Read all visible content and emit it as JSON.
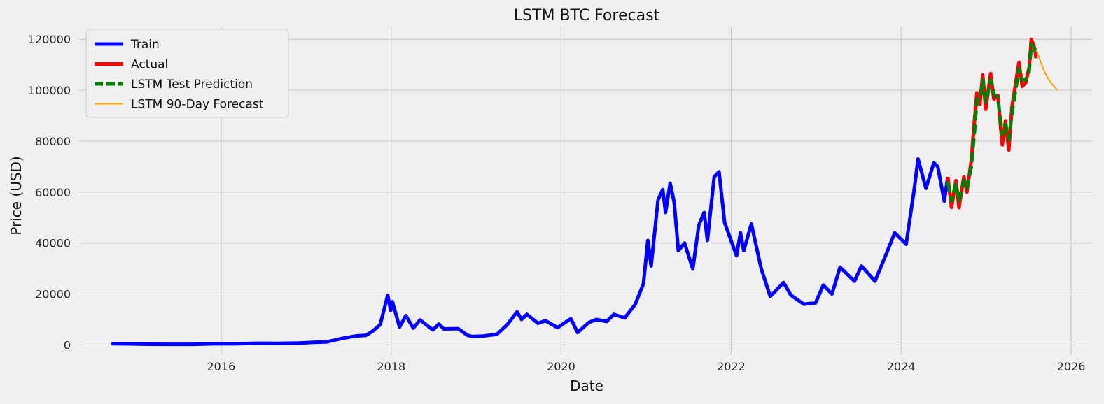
{
  "chart_data": {
    "type": "line",
    "title": "LSTM BTC Forecast",
    "xlabel": "Date",
    "ylabel": "Price (USD)",
    "xlim": [
      "2014-05-01",
      "2026-04-01"
    ],
    "ylim": [
      -4000,
      125000
    ],
    "x_ticks": [
      "2016",
      "2018",
      "2020",
      "2022",
      "2024",
      "2026"
    ],
    "y_ticks": [
      0,
      20000,
      40000,
      60000,
      80000,
      100000,
      120000
    ],
    "grid": true,
    "legend_position": "top-left",
    "series": [
      {
        "name": "Train",
        "color": "#0000ff",
        "style": "solid-thick",
        "points": [
          [
            "2014-09-17",
            450
          ],
          [
            "2014-12-01",
            380
          ],
          [
            "2015-03-01",
            260
          ],
          [
            "2015-06-01",
            230
          ],
          [
            "2015-09-01",
            240
          ],
          [
            "2015-12-01",
            420
          ],
          [
            "2016-03-01",
            420
          ],
          [
            "2016-06-01",
            650
          ],
          [
            "2016-09-01",
            600
          ],
          [
            "2016-12-01",
            750
          ],
          [
            "2017-02-01",
            1000
          ],
          [
            "2017-04-01",
            1200
          ],
          [
            "2017-06-01",
            2500
          ],
          [
            "2017-08-01",
            3500
          ],
          [
            "2017-09-15",
            3800
          ],
          [
            "2017-10-15",
            5500
          ],
          [
            "2017-11-15",
            8000
          ],
          [
            "2017-12-17",
            19500
          ],
          [
            "2017-12-30",
            13500
          ],
          [
            "2018-01-06",
            17000
          ],
          [
            "2018-02-06",
            7000
          ],
          [
            "2018-03-05",
            11500
          ],
          [
            "2018-04-06",
            6600
          ],
          [
            "2018-05-05",
            9800
          ],
          [
            "2018-06-29",
            5900
          ],
          [
            "2018-07-25",
            8200
          ],
          [
            "2018-08-15",
            6300
          ],
          [
            "2018-10-15",
            6400
          ],
          [
            "2018-11-25",
            3800
          ],
          [
            "2018-12-15",
            3300
          ],
          [
            "2019-02-01",
            3500
          ],
          [
            "2019-04-01",
            4200
          ],
          [
            "2019-05-15",
            8000
          ],
          [
            "2019-06-26",
            13000
          ],
          [
            "2019-07-15",
            10000
          ],
          [
            "2019-08-07",
            12000
          ],
          [
            "2019-09-24",
            8500
          ],
          [
            "2019-10-26",
            9500
          ],
          [
            "2019-12-17",
            6800
          ],
          [
            "2020-02-12",
            10300
          ],
          [
            "2020-03-12",
            4900
          ],
          [
            "2020-04-29",
            8800
          ],
          [
            "2020-06-01",
            10000
          ],
          [
            "2020-07-15",
            9200
          ],
          [
            "2020-08-15",
            12000
          ],
          [
            "2020-10-01",
            10600
          ],
          [
            "2020-11-15",
            16000
          ],
          [
            "2020-12-20",
            24000
          ],
          [
            "2021-01-08",
            41000
          ],
          [
            "2021-01-22",
            31000
          ],
          [
            "2021-02-21",
            57000
          ],
          [
            "2021-03-13",
            61000
          ],
          [
            "2021-03-25",
            52000
          ],
          [
            "2021-04-14",
            63500
          ],
          [
            "2021-05-01",
            56000
          ],
          [
            "2021-05-19",
            37000
          ],
          [
            "2021-06-15",
            40000
          ],
          [
            "2021-07-20",
            29800
          ],
          [
            "2021-08-15",
            47000
          ],
          [
            "2021-09-07",
            52000
          ],
          [
            "2021-09-21",
            41000
          ],
          [
            "2021-10-20",
            66000
          ],
          [
            "2021-11-10",
            68000
          ],
          [
            "2021-12-04",
            48000
          ],
          [
            "2022-01-24",
            35000
          ],
          [
            "2022-02-10",
            44000
          ],
          [
            "2022-02-24",
            37000
          ],
          [
            "2022-03-29",
            47500
          ],
          [
            "2022-05-10",
            30000
          ],
          [
            "2022-06-18",
            19000
          ],
          [
            "2022-08-14",
            24500
          ],
          [
            "2022-09-15",
            19500
          ],
          [
            "2022-11-09",
            16000
          ],
          [
            "2022-12-30",
            16500
          ],
          [
            "2023-02-01",
            23500
          ],
          [
            "2023-03-10",
            20000
          ],
          [
            "2023-04-14",
            30500
          ],
          [
            "2023-06-15",
            25000
          ],
          [
            "2023-07-15",
            31000
          ],
          [
            "2023-09-11",
            25000
          ],
          [
            "2023-10-24",
            34500
          ],
          [
            "2023-12-05",
            44000
          ],
          [
            "2024-01-23",
            39500
          ],
          [
            "2024-02-28",
            62000
          ],
          [
            "2024-03-14",
            73000
          ],
          [
            "2024-04-17",
            61500
          ],
          [
            "2024-05-21",
            71500
          ],
          [
            "2024-06-07",
            70000
          ],
          [
            "2024-07-05",
            56500
          ],
          [
            "2024-07-20",
            66000
          ]
        ]
      },
      {
        "name": "Actual",
        "color": "#ff0000",
        "style": "solid-thick",
        "points": [
          [
            "2024-07-20",
            66000
          ],
          [
            "2024-08-05",
            54000
          ],
          [
            "2024-08-24",
            64500
          ],
          [
            "2024-09-06",
            53900
          ],
          [
            "2024-09-27",
            66000
          ],
          [
            "2024-10-10",
            60000
          ],
          [
            "2024-10-29",
            72500
          ],
          [
            "2024-11-12",
            88500
          ],
          [
            "2024-11-22",
            99000
          ],
          [
            "2024-12-05",
            94500
          ],
          [
            "2024-12-17",
            106000
          ],
          [
            "2024-12-30",
            92500
          ],
          [
            "2025-01-20",
            106500
          ],
          [
            "2025-02-03",
            96500
          ],
          [
            "2025-02-20",
            98000
          ],
          [
            "2025-03-11",
            78500
          ],
          [
            "2025-03-25",
            88000
          ],
          [
            "2025-04-08",
            76500
          ],
          [
            "2025-04-22",
            93500
          ],
          [
            "2025-05-22",
            111000
          ],
          [
            "2025-06-05",
            101500
          ],
          [
            "2025-06-20",
            103000
          ],
          [
            "2025-07-05",
            109000
          ],
          [
            "2025-07-14",
            120000
          ],
          [
            "2025-07-30",
            116000
          ],
          [
            "2025-08-03",
            112500
          ]
        ]
      },
      {
        "name": "LSTM Test Prediction",
        "color": "#008000",
        "style": "dashed-thick",
        "points": [
          [
            "2024-07-20",
            64000
          ],
          [
            "2024-08-05",
            56500
          ],
          [
            "2024-08-24",
            63500
          ],
          [
            "2024-09-06",
            56500
          ],
          [
            "2024-09-27",
            64500
          ],
          [
            "2024-10-10",
            61500
          ],
          [
            "2024-10-29",
            70000
          ],
          [
            "2024-11-12",
            84000
          ],
          [
            "2024-11-22",
            96500
          ],
          [
            "2024-12-05",
            96500
          ],
          [
            "2024-12-17",
            104000
          ],
          [
            "2024-12-30",
            95500
          ],
          [
            "2025-01-20",
            104000
          ],
          [
            "2025-02-03",
            98500
          ],
          [
            "2025-02-20",
            97000
          ],
          [
            "2025-03-11",
            82500
          ],
          [
            "2025-03-25",
            86500
          ],
          [
            "2025-04-08",
            80500
          ],
          [
            "2025-04-22",
            91000
          ],
          [
            "2025-05-22",
            108500
          ],
          [
            "2025-06-05",
            104000
          ],
          [
            "2025-06-20",
            104000
          ],
          [
            "2025-07-05",
            107500
          ],
          [
            "2025-07-14",
            118000
          ],
          [
            "2025-07-30",
            116000
          ],
          [
            "2025-08-03",
            113500
          ]
        ]
      },
      {
        "name": "LSTM 90-Day Forecast",
        "color": "#ffa500",
        "style": "solid-thin",
        "points": [
          [
            "2025-08-04",
            116000
          ],
          [
            "2025-08-20",
            112000
          ],
          [
            "2025-09-05",
            108000
          ],
          [
            "2025-09-21",
            105000
          ],
          [
            "2025-10-07",
            102800
          ],
          [
            "2025-10-23",
            101200
          ],
          [
            "2025-11-02",
            100000
          ]
        ]
      }
    ]
  }
}
